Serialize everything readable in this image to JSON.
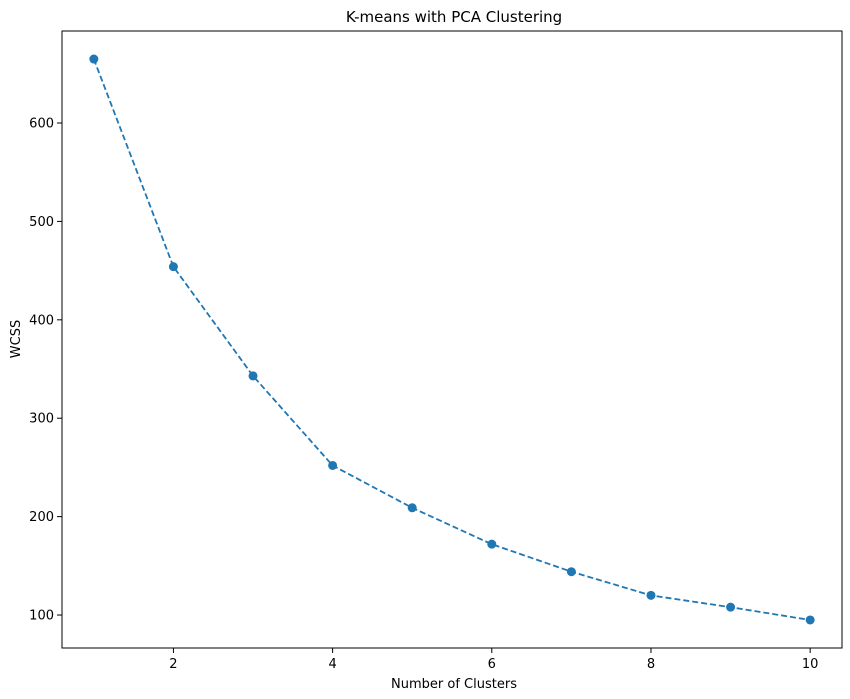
{
  "chart_data": {
    "type": "line",
    "title": "K-means with PCA Clustering",
    "xlabel": "Number of Clusters",
    "ylabel": "WCSS",
    "x": [
      1,
      2,
      3,
      4,
      5,
      6,
      7,
      8,
      9,
      10
    ],
    "series": [
      {
        "values": [
          665,
          454,
          343,
          252,
          209,
          172,
          144,
          120,
          108,
          95
        ],
        "color": "#1f77b4",
        "line_style": "dashed",
        "marker": "circle"
      }
    ],
    "xlim": [
      0.6,
      10.4
    ],
    "ylim": [
      66.5,
      693.5
    ],
    "xticks": [
      2,
      4,
      6,
      8,
      10
    ],
    "yticks": [
      100,
      200,
      300,
      400,
      500,
      600
    ],
    "grid": false,
    "legend": false
  }
}
